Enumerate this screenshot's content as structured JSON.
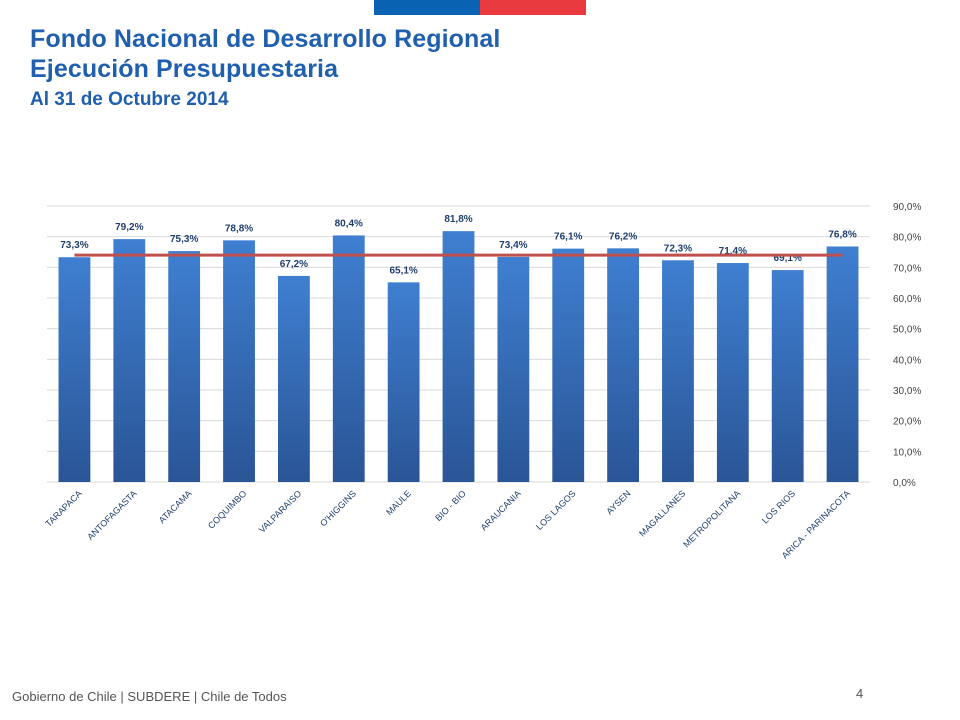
{
  "header": {
    "title_line1": "Fondo Nacional de Desarrollo Regional",
    "title_line2": "Ejecución Presupuestaria",
    "subtitle": "Al 31 de Octubre 2014",
    "flag_colors": [
      "#0a62b2",
      "#e93b3f"
    ]
  },
  "footer": {
    "text": "Gobierno de Chile | SUBDERE | Chile de Todos",
    "page_number": "4"
  },
  "chart_data": {
    "type": "bar",
    "categories": [
      "TARAPACA",
      "ANTOFAGASTA",
      "ATACAMA",
      "COQUIMBO",
      "VALPARAISO",
      "O'HIGGINS",
      "MAULE",
      "BIO - BIO",
      "ARAUCANIA",
      "LOS LAGOS",
      "AYSEN",
      "MAGALLANES",
      "METROPOLITANA",
      "LOS RIOS",
      "ARICA - PARINACOTA"
    ],
    "values": [
      73.3,
      79.2,
      75.3,
      78.8,
      67.2,
      80.4,
      65.1,
      81.8,
      73.4,
      76.1,
      76.2,
      72.3,
      71.4,
      69.1,
      76.8
    ],
    "data_labels": [
      "73,3%",
      "79,2%",
      "75,3%",
      "78,8%",
      "67,2%",
      "80,4%",
      "65,1%",
      "81,8%",
      "73,4%",
      "76,1%",
      "76,2%",
      "72,3%",
      "71,4%",
      "69,1%",
      "76,8%"
    ],
    "reference_line": {
      "value": 74.0,
      "color": "#c0504d"
    },
    "ylim": [
      0,
      90
    ],
    "yticks": [
      0,
      10,
      20,
      30,
      40,
      50,
      60,
      70,
      80,
      90
    ],
    "ytick_labels": [
      "0,0%",
      "10,0%",
      "20,0%",
      "30,0%",
      "40,0%",
      "50,0%",
      "60,0%",
      "70,0%",
      "80,0%",
      "90,0%"
    ],
    "y_axis_side": "right",
    "grid": true,
    "legend": "none",
    "bar_color_top": "#3f7fd1",
    "bar_color_bottom": "#2a5596"
  }
}
